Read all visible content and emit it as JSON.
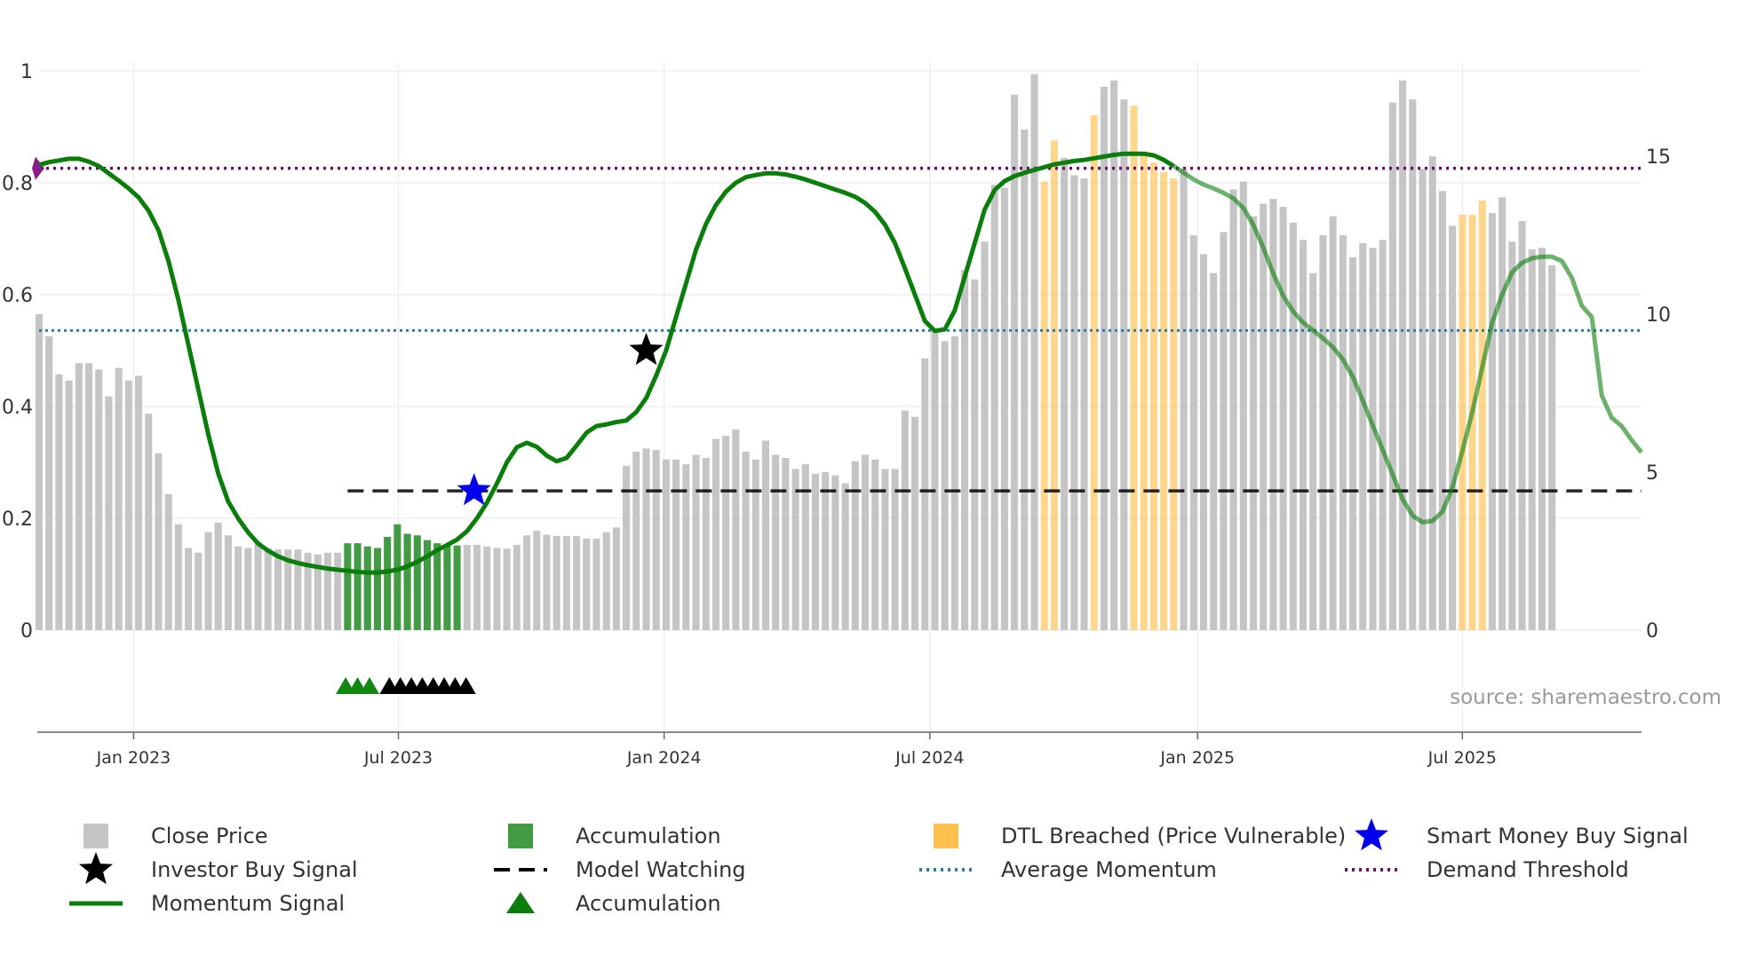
{
  "chart_data": {
    "type": "bar+line",
    "source": "source: sharemaestro.com",
    "left_axis": {
      "ylim": [
        0,
        1
      ],
      "ticks": [
        "0",
        "0.2",
        "0.4",
        "0.6",
        "0.8",
        "1"
      ],
      "tick_values": [
        0,
        0.2,
        0.4,
        0.6,
        0.8,
        1
      ]
    },
    "right_axis": {
      "ylim": [
        0,
        17.7
      ],
      "ticks": [
        "0",
        "5",
        "10",
        "15"
      ],
      "tick_values": [
        0,
        5,
        10,
        15
      ]
    },
    "x_range_weeks": [
      0,
      161
    ],
    "x_ticks": [
      {
        "label": "Jan 2023",
        "week": 9.5
      },
      {
        "label": "Jul 2023",
        "week": 36.1
      },
      {
        "label": "Jan 2024",
        "week": 62.8
      },
      {
        "label": "Jul 2024",
        "week": 89.5
      },
      {
        "label": "Jan 2025",
        "week": 116.4
      },
      {
        "label": "Jul 2025",
        "week": 143.0
      }
    ],
    "close_price": [
      10.0,
      9.3,
      8.1,
      7.9,
      8.45,
      8.45,
      8.25,
      7.4,
      8.3,
      7.9,
      8.05,
      6.85,
      5.6,
      4.3,
      3.35,
      2.6,
      2.45,
      3.1,
      3.4,
      3.0,
      2.65,
      2.6,
      2.8,
      2.6,
      2.55,
      2.55,
      2.55,
      2.45,
      2.4,
      2.45,
      2.45,
      2.75,
      2.75,
      2.65,
      2.6,
      2.95,
      3.35,
      3.05,
      3.0,
      2.85,
      2.75,
      2.7,
      2.68,
      2.7,
      2.7,
      2.65,
      2.6,
      2.58,
      2.7,
      3.0,
      3.15,
      3.02,
      2.98,
      2.98,
      2.98,
      2.9,
      2.9,
      3.1,
      3.25,
      5.2,
      5.65,
      5.75,
      5.7,
      5.4,
      5.4,
      5.25,
      5.55,
      5.45,
      6.05,
      6.15,
      6.35,
      5.65,
      5.4,
      6.0,
      5.55,
      5.45,
      5.1,
      5.25,
      4.95,
      5.0,
      4.9,
      4.65,
      5.35,
      5.55,
      5.4,
      5.1,
      5.1,
      6.95,
      6.75,
      8.6,
      9.5,
      9.15,
      9.3,
      11.4,
      11.1,
      12.3,
      14.1,
      14.0,
      16.95,
      15.85,
      17.6,
      14.2,
      15.5,
      14.95,
      14.4,
      14.3,
      16.3,
      17.2,
      17.4,
      16.8,
      16.6,
      15.1,
      14.8,
      14.5,
      14.3,
      14.6,
      12.5,
      11.9,
      11.3,
      12.6,
      13.95,
      14.2,
      13.1,
      13.5,
      13.65,
      13.4,
      12.9,
      12.35,
      11.3,
      12.5,
      13.1,
      12.5,
      11.8,
      12.25,
      12.1,
      12.35,
      16.7,
      17.4,
      16.8,
      14.6,
      15.0,
      13.9,
      12.8,
      13.15,
      13.15,
      13.6,
      13.2,
      13.7,
      12.3,
      12.95,
      12.05,
      12.1,
      11.55
    ],
    "accumulation_bars": {
      "from_week": 31,
      "to_week": 42
    },
    "dtl_breached_weeks": [
      101,
      102,
      106,
      110,
      111,
      112,
      113,
      114,
      143,
      144,
      145
    ],
    "momentum_signal": [
      [
        0,
        0.832
      ],
      [
        1,
        0.837
      ],
      [
        2,
        0.84
      ],
      [
        3,
        0.843
      ],
      [
        4,
        0.843
      ],
      [
        5,
        0.838
      ],
      [
        6,
        0.83
      ],
      [
        7,
        0.817
      ],
      [
        8,
        0.804
      ],
      [
        9,
        0.79
      ],
      [
        10,
        0.774
      ],
      [
        11,
        0.75
      ],
      [
        12,
        0.715
      ],
      [
        13,
        0.66
      ],
      [
        14,
        0.59
      ],
      [
        15,
        0.51
      ],
      [
        16,
        0.43
      ],
      [
        17,
        0.35
      ],
      [
        18,
        0.28
      ],
      [
        19,
        0.23
      ],
      [
        20,
        0.2
      ],
      [
        21,
        0.175
      ],
      [
        22,
        0.155
      ],
      [
        23,
        0.142
      ],
      [
        24,
        0.132
      ],
      [
        25,
        0.125
      ],
      [
        26,
        0.12
      ],
      [
        27,
        0.116
      ],
      [
        28,
        0.113
      ],
      [
        29,
        0.11
      ],
      [
        30,
        0.108
      ],
      [
        31,
        0.106
      ],
      [
        32,
        0.104
      ],
      [
        33,
        0.103
      ],
      [
        34,
        0.103
      ],
      [
        35,
        0.105
      ],
      [
        36,
        0.108
      ],
      [
        37,
        0.114
      ],
      [
        38,
        0.122
      ],
      [
        39,
        0.132
      ],
      [
        40,
        0.143
      ],
      [
        41,
        0.152
      ],
      [
        42,
        0.162
      ],
      [
        43,
        0.177
      ],
      [
        44,
        0.2
      ],
      [
        45,
        0.228
      ],
      [
        46,
        0.262
      ],
      [
        47,
        0.3
      ],
      [
        48,
        0.327
      ],
      [
        49,
        0.335
      ],
      [
        50,
        0.328
      ],
      [
        51,
        0.312
      ],
      [
        52,
        0.302
      ],
      [
        53,
        0.308
      ],
      [
        54,
        0.33
      ],
      [
        55,
        0.353
      ],
      [
        56,
        0.365
      ],
      [
        57,
        0.368
      ],
      [
        58,
        0.372
      ],
      [
        59,
        0.375
      ],
      [
        60,
        0.39
      ],
      [
        61,
        0.415
      ],
      [
        62,
        0.455
      ],
      [
        63,
        0.5
      ],
      [
        64,
        0.56
      ],
      [
        65,
        0.62
      ],
      [
        66,
        0.68
      ],
      [
        67,
        0.726
      ],
      [
        68,
        0.76
      ],
      [
        69,
        0.784
      ],
      [
        70,
        0.8
      ],
      [
        71,
        0.81
      ],
      [
        72,
        0.814
      ],
      [
        73,
        0.817
      ],
      [
        74,
        0.817
      ],
      [
        75,
        0.815
      ],
      [
        76,
        0.811
      ],
      [
        77,
        0.806
      ],
      [
        78,
        0.8
      ],
      [
        79,
        0.794
      ],
      [
        80,
        0.788
      ],
      [
        81,
        0.782
      ],
      [
        82,
        0.775
      ],
      [
        83,
        0.764
      ],
      [
        84,
        0.748
      ],
      [
        85,
        0.725
      ],
      [
        86,
        0.692
      ],
      [
        87,
        0.647
      ],
      [
        88,
        0.6
      ],
      [
        89,
        0.553
      ],
      [
        90,
        0.535
      ],
      [
        91,
        0.538
      ],
      [
        92,
        0.572
      ],
      [
        93,
        0.632
      ],
      [
        94,
        0.692
      ],
      [
        95,
        0.752
      ],
      [
        96,
        0.787
      ],
      [
        97,
        0.803
      ],
      [
        98,
        0.812
      ],
      [
        99,
        0.818
      ],
      [
        100,
        0.823
      ],
      [
        101,
        0.828
      ],
      [
        102,
        0.833
      ],
      [
        103,
        0.836
      ],
      [
        104,
        0.839
      ],
      [
        105,
        0.841
      ],
      [
        106,
        0.844
      ],
      [
        107,
        0.847
      ],
      [
        108,
        0.85
      ],
      [
        109,
        0.852
      ],
      [
        110,
        0.852
      ],
      [
        111,
        0.852
      ],
      [
        112,
        0.849
      ],
      [
        113,
        0.841
      ],
      [
        114,
        0.83
      ],
      [
        115,
        0.818
      ],
      [
        116,
        0.806
      ],
      [
        117,
        0.797
      ],
      [
        118,
        0.79
      ],
      [
        119,
        0.782
      ],
      [
        120,
        0.772
      ],
      [
        121,
        0.755
      ],
      [
        122,
        0.725
      ],
      [
        123,
        0.684
      ],
      [
        124,
        0.638
      ],
      [
        125,
        0.598
      ],
      [
        126,
        0.57
      ],
      [
        127,
        0.55
      ],
      [
        128,
        0.536
      ],
      [
        129,
        0.522
      ],
      [
        130,
        0.506
      ],
      [
        131,
        0.484
      ],
      [
        132,
        0.453
      ],
      [
        133,
        0.41
      ],
      [
        134,
        0.366
      ],
      [
        135,
        0.322
      ],
      [
        136,
        0.278
      ],
      [
        137,
        0.234
      ],
      [
        138,
        0.205
      ],
      [
        139,
        0.193
      ],
      [
        140,
        0.195
      ],
      [
        141,
        0.212
      ],
      [
        142,
        0.255
      ],
      [
        143,
        0.32
      ],
      [
        144,
        0.39
      ],
      [
        145,
        0.47
      ],
      [
        146,
        0.55
      ],
      [
        147,
        0.6
      ],
      [
        148,
        0.64
      ],
      [
        149,
        0.657
      ],
      [
        150,
        0.665
      ],
      [
        151,
        0.668
      ],
      [
        152,
        0.668
      ],
      [
        153,
        0.66
      ],
      [
        154,
        0.63
      ],
      [
        155,
        0.58
      ],
      [
        156,
        0.56
      ],
      [
        157,
        0.42
      ],
      [
        158,
        0.38
      ],
      [
        159,
        0.365
      ],
      [
        160,
        0.34
      ],
      [
        161,
        0.318
      ]
    ],
    "model_watching_level": 0.249,
    "model_watching_from_week": 31,
    "average_momentum": 0.536,
    "demand_threshold": 0.826,
    "investor_buy_signal": {
      "week": 61,
      "value": 0.5
    },
    "smart_money_buy_signal": {
      "week": 43.7,
      "value": 0.249
    },
    "accumulation_markers": {
      "green_weeks": [
        30.8,
        32.0,
        33.2
      ],
      "black_weeks": [
        35.2,
        36.3,
        37.4,
        38.5,
        39.6,
        40.7,
        41.8,
        42.9
      ]
    },
    "colors": {
      "close_price": "#bbbbbb",
      "accumulation": "#228b22",
      "dtl": "#ffb52e",
      "momentum": "#0a7d0a",
      "average": "#2c7ea8",
      "threshold": "#6a0f6a",
      "smart_money": "#0000ee",
      "investor": "#000000",
      "watching": "#000000"
    },
    "legend": [
      {
        "label": "Close Price",
        "symbol": "square",
        "color": "#bbbbbb"
      },
      {
        "label": "Accumulation",
        "symbol": "square",
        "color": "#228b22"
      },
      {
        "label": "DTL Breached (Price Vulnerable)",
        "symbol": "square",
        "color": "#ffb52e"
      },
      {
        "label": "Smart Money Buy Signal",
        "symbol": "star",
        "color": "#0000ee"
      },
      {
        "label": "Investor Buy Signal",
        "symbol": "star",
        "color": "#000000"
      },
      {
        "label": "Model Watching",
        "symbol": "dash",
        "color": "#000000"
      },
      {
        "label": "Average Momentum",
        "symbol": "dot-blue",
        "color": "#2c7ea8"
      },
      {
        "label": "Demand Threshold",
        "symbol": "dot-purple",
        "color": "#6a0f6a"
      },
      {
        "label": "Momentum Signal",
        "symbol": "line",
        "color": "#0a7d0a"
      },
      {
        "label": "Accumulation",
        "symbol": "triangle",
        "color": "#0a7d0a"
      }
    ]
  }
}
